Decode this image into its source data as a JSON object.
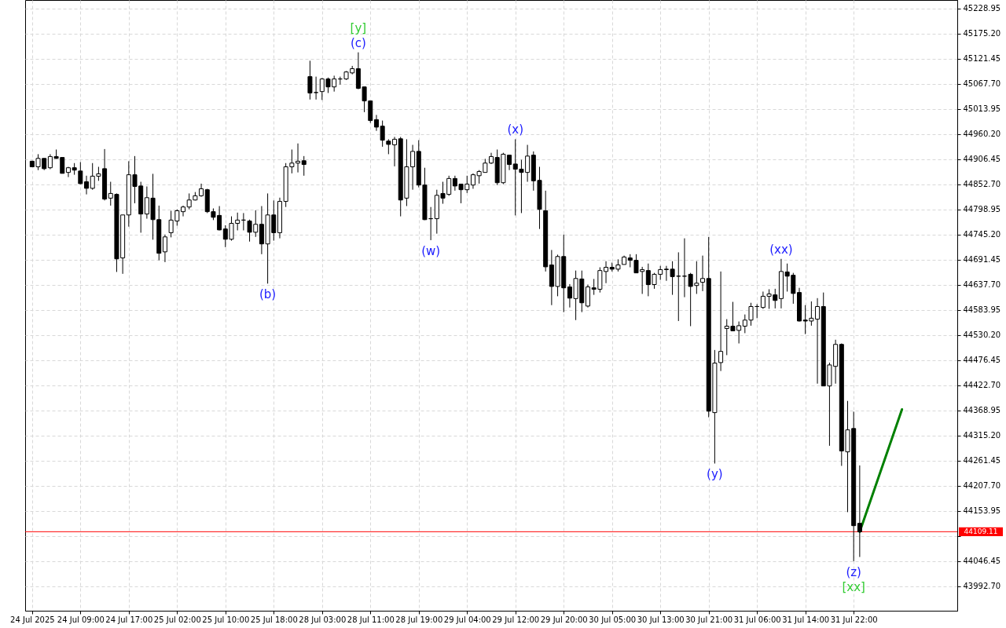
{
  "chart_data": {
    "type": "candlestick",
    "categories": [
      "24 Jul 2025",
      null,
      null,
      null,
      null,
      null,
      null,
      null,
      "24 Jul 09:00",
      null,
      null,
      null,
      null,
      null,
      null,
      null,
      "24 Jul 17:00",
      null,
      null,
      null,
      null,
      null,
      null,
      null,
      "25 Jul 02:00",
      null,
      null,
      null,
      null,
      null,
      null,
      null,
      "25 Jul 10:00",
      null,
      null,
      null,
      null,
      null,
      null,
      null,
      "25 Jul 18:00",
      null,
      null,
      null,
      null,
      null,
      null,
      null,
      "28 Jul 03:00",
      null,
      null,
      null,
      null,
      null,
      null,
      null,
      "28 Jul 11:00",
      null,
      null,
      null,
      null,
      null,
      null,
      null,
      "28 Jul 19:00",
      null,
      null,
      null,
      null,
      null,
      null,
      null,
      "29 Jul 04:00",
      null,
      null,
      null,
      null,
      null,
      null,
      null,
      "29 Jul 12:00",
      null,
      null,
      null,
      null,
      null,
      null,
      null,
      "29 Jul 20:00",
      null,
      null,
      null,
      null,
      null,
      null,
      null,
      "30 Jul 05:00",
      null,
      null,
      null,
      null,
      null,
      null,
      null,
      "30 Jul 13:00",
      null,
      null,
      null,
      null,
      null,
      null,
      null,
      "30 Jul 21:00",
      null,
      null,
      null,
      null,
      null,
      null,
      null,
      "31 Jul 06:00",
      null,
      null,
      null,
      null,
      null,
      null,
      null,
      "31 Jul 14:00",
      null,
      null,
      null,
      null,
      null,
      null,
      null,
      "31 Jul 22:00",
      null,
      null,
      null,
      null,
      null,
      null,
      null,
      null,
      null,
      null,
      null,
      null,
      null,
      null,
      null,
      null
    ],
    "ohlc": [
      [
        44902,
        44903,
        44890,
        44890
      ],
      [
        44890,
        44917,
        44883,
        44908
      ],
      [
        44908,
        44908,
        44883,
        44886
      ],
      [
        44888,
        44917,
        44885,
        44912
      ],
      [
        44912,
        44927,
        44907,
        44908
      ],
      [
        44910,
        44910,
        44876,
        44876
      ],
      [
        44878,
        44890,
        44868,
        44888
      ],
      [
        44888,
        44898,
        44873,
        44883
      ],
      [
        44881,
        44900,
        44853,
        44854
      ],
      [
        44858,
        44871,
        44831,
        44844
      ],
      [
        44844,
        44898,
        44841,
        44870
      ],
      [
        44870,
        44890,
        44860,
        44875
      ],
      [
        44886,
        44928,
        44818,
        44821
      ],
      [
        44823,
        44858,
        44807,
        44833
      ],
      [
        44831,
        44833,
        44665,
        44693
      ],
      [
        44695,
        44787,
        44661,
        44787
      ],
      [
        44787,
        44902,
        44762,
        44873
      ],
      [
        44873,
        44913,
        44812,
        44848
      ],
      [
        44849,
        44858,
        44749,
        44789
      ],
      [
        44789,
        44848,
        44779,
        44824
      ],
      [
        44823,
        44875,
        44734,
        44777
      ],
      [
        44777,
        44807,
        44690,
        44705
      ],
      [
        44708,
        44745,
        44686,
        44740
      ],
      [
        44749,
        44796,
        44739,
        44776
      ],
      [
        44774,
        44799,
        44764,
        44796
      ],
      [
        44794,
        44807,
        44784,
        44804
      ],
      [
        44804,
        44833,
        44799,
        44819
      ],
      [
        44819,
        44836,
        44818,
        44828
      ],
      [
        44828,
        44854,
        44826,
        44843
      ],
      [
        44841,
        44843,
        44791,
        44794
      ],
      [
        44794,
        44801,
        44776,
        44782
      ],
      [
        44786,
        44806,
        44754,
        44755
      ],
      [
        44757,
        44765,
        44718,
        44735
      ],
      [
        44735,
        44784,
        44732,
        44769
      ],
      [
        44769,
        44792,
        44754,
        44776
      ],
      [
        44776,
        44791,
        44754,
        44776
      ],
      [
        44774,
        44777,
        44730,
        44750
      ],
      [
        44750,
        44797,
        44740,
        44767
      ],
      [
        44767,
        44806,
        44703,
        44725
      ],
      [
        44725,
        44833,
        44640,
        44787
      ],
      [
        44787,
        44818,
        44732,
        44749
      ],
      [
        44749,
        44824,
        44737,
        44816
      ],
      [
        44816,
        44898,
        44804,
        44890
      ],
      [
        44890,
        44927,
        44876,
        44898
      ],
      [
        44898,
        44940,
        44878,
        44902
      ],
      [
        44903,
        44913,
        44871,
        44895
      ],
      [
        45083,
        45117,
        45034,
        45048
      ],
      [
        45049,
        45083,
        45034,
        45049
      ],
      [
        45051,
        45080,
        45033,
        45078
      ],
      [
        45078,
        45081,
        45048,
        45061
      ],
      [
        45061,
        45085,
        45051,
        45078
      ],
      [
        45078,
        45083,
        45066,
        45078
      ],
      [
        45078,
        45095,
        45076,
        45093
      ],
      [
        45091,
        45106,
        45088,
        45100
      ],
      [
        45100,
        45135,
        45056,
        45058
      ],
      [
        45061,
        45061,
        45007,
        45031
      ],
      [
        45031,
        45031,
        44984,
        44989
      ],
      [
        44991,
        45001,
        44967,
        44975
      ],
      [
        44977,
        44989,
        44933,
        44947
      ],
      [
        44945,
        44949,
        44917,
        44938
      ],
      [
        44937,
        44954,
        44891,
        44949
      ],
      [
        44950,
        44954,
        44784,
        44819
      ],
      [
        44823,
        44949,
        44806,
        44890
      ],
      [
        44890,
        44937,
        44841,
        44923
      ],
      [
        44923,
        44947,
        44846,
        44851
      ],
      [
        44851,
        44888,
        44776,
        44777
      ],
      [
        44779,
        44804,
        44733,
        44779
      ],
      [
        44779,
        44841,
        44747,
        44829
      ],
      [
        44833,
        44858,
        44811,
        44823
      ],
      [
        44831,
        44871,
        44828,
        44865
      ],
      [
        44865,
        44871,
        44839,
        44849
      ],
      [
        44853,
        44853,
        44812,
        44841
      ],
      [
        44841,
        44871,
        44834,
        44853
      ],
      [
        44851,
        44876,
        44843,
        44873
      ],
      [
        44871,
        44883,
        44854,
        44880
      ],
      [
        44878,
        44907,
        44878,
        44898
      ],
      [
        44898,
        44920,
        44896,
        44912
      ],
      [
        44910,
        44927,
        44851,
        44856
      ],
      [
        44856,
        44920,
        44853,
        44917
      ],
      [
        44915,
        44915,
        44883,
        44895
      ],
      [
        44896,
        44949,
        44786,
        44885
      ],
      [
        44885,
        44905,
        44791,
        44878
      ],
      [
        44878,
        44937,
        44858,
        44913
      ],
      [
        44915,
        44923,
        44839,
        44860
      ],
      [
        44861,
        44890,
        44757,
        44799
      ],
      [
        44796,
        44839,
        44666,
        44676
      ],
      [
        44680,
        44712,
        44594,
        44634
      ],
      [
        44634,
        44702,
        44613,
        44698
      ],
      [
        44698,
        44745,
        44579,
        44631
      ],
      [
        44633,
        44639,
        44589,
        44609
      ],
      [
        44608,
        44668,
        44562,
        44651
      ],
      [
        44650,
        44668,
        44579,
        44599
      ],
      [
        44592,
        44638,
        44589,
        44633
      ],
      [
        44631,
        44650,
        44616,
        44628
      ],
      [
        44628,
        44675,
        44621,
        44668
      ],
      [
        44666,
        44688,
        44641,
        44675
      ],
      [
        44675,
        44685,
        44666,
        44671
      ],
      [
        44671,
        44692,
        44666,
        44680
      ],
      [
        44681,
        44700,
        44681,
        44697
      ],
      [
        44695,
        44703,
        44675,
        44690
      ],
      [
        44690,
        44703,
        44663,
        44663
      ],
      [
        44666,
        44676,
        44618,
        44670
      ],
      [
        44668,
        44683,
        44613,
        44638
      ],
      [
        44638,
        44663,
        44629,
        44660
      ],
      [
        44660,
        44678,
        44648,
        44670
      ],
      [
        44671,
        44678,
        44646,
        44670
      ],
      [
        44671,
        44688,
        44616,
        44655
      ],
      [
        44656,
        44707,
        44560,
        44656
      ],
      [
        44656,
        44737,
        44611,
        44656
      ],
      [
        44660,
        44663,
        44549,
        44634
      ],
      [
        44636,
        44688,
        44618,
        44641
      ],
      [
        44643,
        44700,
        44624,
        44651
      ],
      [
        44651,
        44740,
        44354,
        44367
      ],
      [
        44364,
        44498,
        44255,
        44470
      ],
      [
        44471,
        44666,
        44453,
        44495
      ],
      [
        44544,
        44564,
        44487,
        44549
      ],
      [
        44549,
        44601,
        44539,
        44539
      ],
      [
        44540,
        44559,
        44512,
        44550
      ],
      [
        44549,
        44574,
        44534,
        44562
      ],
      [
        44562,
        44599,
        44550,
        44591
      ],
      [
        44591,
        44596,
        44566,
        44591
      ],
      [
        44589,
        44623,
        44586,
        44613
      ],
      [
        44613,
        44628,
        44586,
        44618
      ],
      [
        44616,
        44629,
        44587,
        44604
      ],
      [
        44608,
        44693,
        44587,
        44666
      ],
      [
        44665,
        44683,
        44623,
        44656
      ],
      [
        44658,
        44663,
        44597,
        44619
      ],
      [
        44621,
        44631,
        44559,
        44560
      ],
      [
        44562,
        44594,
        44532,
        44560
      ],
      [
        44560,
        44602,
        44550,
        44566
      ],
      [
        44564,
        44609,
        44426,
        44591
      ],
      [
        44591,
        44621,
        44421,
        44421
      ],
      [
        44421,
        44471,
        44293,
        44466
      ],
      [
        44463,
        44520,
        44426,
        44510
      ],
      [
        44510,
        44512,
        44250,
        44282
      ],
      [
        44280,
        44389,
        44151,
        44327
      ],
      [
        44330,
        44366,
        44046,
        44122
      ],
      [
        44127,
        44251,
        44055,
        44109
      ],
      null,
      null,
      null,
      null,
      null,
      null,
      null,
      null,
      null,
      null,
      null,
      null,
      null,
      null,
      null
    ],
    "series": [
      {
        "type": "line",
        "color": "#008000",
        "values": [
          null,
          null,
          null,
          null,
          null,
          null,
          null,
          null,
          null,
          null,
          null,
          null,
          null,
          null,
          null,
          null,
          null,
          null,
          null,
          null,
          null,
          null,
          null,
          null,
          null,
          null,
          null,
          null,
          null,
          null,
          null,
          null,
          null,
          null,
          null,
          null,
          null,
          null,
          null,
          null,
          null,
          null,
          null,
          null,
          null,
          null,
          null,
          null,
          null,
          null,
          null,
          null,
          null,
          null,
          null,
          null,
          null,
          null,
          null,
          null,
          null,
          null,
          null,
          null,
          null,
          null,
          null,
          null,
          null,
          null,
          null,
          null,
          null,
          null,
          null,
          null,
          null,
          null,
          null,
          null,
          null,
          null,
          null,
          null,
          null,
          null,
          null,
          null,
          null,
          null,
          null,
          null,
          null,
          null,
          null,
          null,
          null,
          null,
          null,
          null,
          null,
          null,
          null,
          null,
          null,
          null,
          null,
          null,
          null,
          null,
          null,
          null,
          null,
          null,
          null,
          null,
          null,
          null,
          null,
          null,
          null,
          null,
          null,
          null,
          null,
          null,
          null,
          null,
          null,
          null,
          null,
          null,
          null,
          null,
          null,
          null,
          null,
          44109,
          null,
          null,
          null,
          null,
          null,
          null,
          44371,
          null,
          null,
          null,
          null,
          null,
          null,
          null,
          null
        ]
      }
    ],
    "ylim": [
      43940,
      45247
    ],
    "yticks": [
      {
        "value": 43992.7,
        "label": "43992.70"
      },
      {
        "value": 44046.45,
        "label": "44046.45"
      },
      {
        "value": 44100.2,
        "label": null
      },
      {
        "value": 44153.95,
        "label": "44153.95"
      },
      {
        "value": 44207.7,
        "label": "44207.70"
      },
      {
        "value": 44261.45,
        "label": "44261.45"
      },
      {
        "value": 44315.2,
        "label": "44315.20"
      },
      {
        "value": 44368.95,
        "label": "44368.95"
      },
      {
        "value": 44422.7,
        "label": "44422.70"
      },
      {
        "value": 44476.45,
        "label": "44476.45"
      },
      {
        "value": 44530.2,
        "label": "44530.20"
      },
      {
        "value": 44583.95,
        "label": "44583.95"
      },
      {
        "value": 44637.7,
        "label": "44637.70"
      },
      {
        "value": 44691.45,
        "label": "44691.45"
      },
      {
        "value": 44745.2,
        "label": "44745.20"
      },
      {
        "value": 44798.95,
        "label": "44798.95"
      },
      {
        "value": 44852.7,
        "label": "44852.70"
      },
      {
        "value": 44906.45,
        "label": "44906.45"
      },
      {
        "value": 44960.2,
        "label": "44960.20"
      },
      {
        "value": 45013.95,
        "label": "45013.95"
      },
      {
        "value": 45067.7,
        "label": "45067.70"
      },
      {
        "value": 45121.45,
        "label": "45121.45"
      },
      {
        "value": 45175.2,
        "label": "45175.20"
      },
      {
        "value": 45228.95,
        "label": "45228.95"
      }
    ],
    "grid": true,
    "ref_lines": [
      {
        "axis": "y",
        "value": 44109.11,
        "label": "44109.11",
        "color": "#ff0000"
      }
    ],
    "annotations": [
      {
        "text": "(c)",
        "y": 45135
      },
      {
        "text": "[y]",
        "y": 45135
      },
      {
        "text": "(b)",
        "y": 44640
      },
      {
        "text": "(w)",
        "y": 44733
      },
      {
        "text": "(x)",
        "x": "29 Jul 12:00",
        "y": 44949
      },
      {
        "text": "(xx)",
        "y": 44693
      },
      {
        "text": "(y)",
        "y": 44255
      },
      {
        "text": "(z)",
        "x": "31 Jul 22:00",
        "y": 44046
      },
      {
        "text": "[xx]",
        "x": "31 Jul 22:00",
        "y": 44046
      }
    ]
  }
}
